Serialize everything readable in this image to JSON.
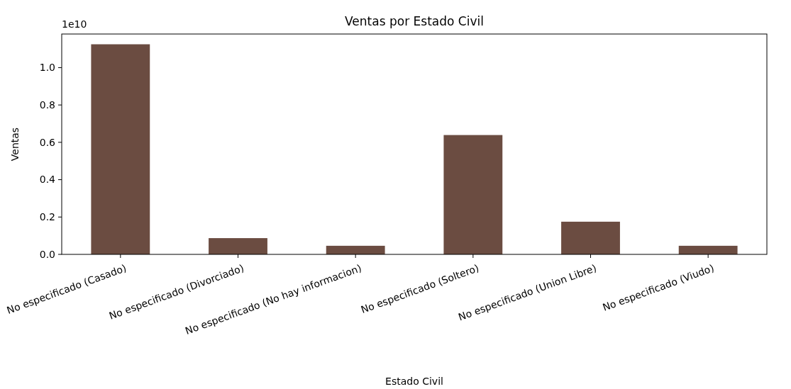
{
  "chart_data": {
    "type": "bar",
    "title": "Ventas por Estado Civil",
    "xlabel": "Estado Civil",
    "ylabel": "Ventas",
    "annotations": [
      "1e10"
    ],
    "categories": [
      "No especificado (Casado)",
      "No especificado (Divorciado)",
      "No especificado (No hay informacion)",
      "No especificado (Soltero)",
      "No especificado (Union Libre)",
      "No especificado (Viudo)"
    ],
    "series": [
      {
        "color": "#6b4c41",
        "values": [
          1.125,
          0.087,
          0.046,
          0.639,
          0.175,
          0.046
        ]
      }
    ],
    "ylim": [
      0,
      1.18
    ],
    "yticks": [
      {
        "value": 0,
        "label": "0.0"
      },
      {
        "value": 0.2,
        "label": "0.2"
      },
      {
        "value": 0.4,
        "label": "0.4"
      },
      {
        "value": 0.6,
        "label": "0.6"
      },
      {
        "value": 0.8,
        "label": "0.8"
      },
      {
        "value": 1.0,
        "label": "1.0"
      }
    ],
    "grid": false
  }
}
